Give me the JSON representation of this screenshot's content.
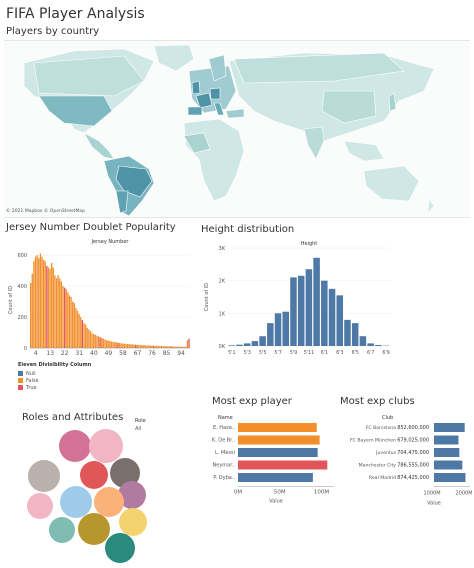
{
  "dashboard": {
    "title": "FIFA Player Analysis",
    "map_title": "Players by country",
    "map_credit": "© 2021 Mapbox © OpenStreetMap",
    "jersey_title": "Jersey Number Doublet Popularity",
    "height_title": "Height distribution",
    "roles_title": "Roles and Attributes",
    "player_title": "Most exp player",
    "clubs_title": "Most exp clubs"
  },
  "colors": {
    "null": "#4e79a7",
    "false": "#f28e2b",
    "true": "#e15759",
    "map_low": "#cfe7e5",
    "map_high": "#4f93a6",
    "bar_blue": "#4e79a7"
  },
  "chart_data": [
    {
      "id": "jersey",
      "type": "bar",
      "title": "Jersey Number",
      "xlabel": "",
      "ylabel": "Count of ID",
      "xlim": [
        1,
        99
      ],
      "ylim": [
        0,
        620
      ],
      "yticks": [
        0,
        200,
        400,
        600
      ],
      "xticks": [
        4,
        13,
        22,
        31,
        40,
        49,
        58,
        67,
        76,
        85,
        94
      ],
      "values": [
        420,
        480,
        560,
        590,
        600,
        580,
        610,
        590,
        570,
        560,
        530,
        520,
        510,
        550,
        520,
        470,
        450,
        470,
        450,
        430,
        400,
        390,
        380,
        360,
        340,
        330,
        300,
        290,
        260,
        240,
        220,
        200,
        180,
        160,
        150,
        130,
        120,
        110,
        95,
        90,
        85,
        80,
        75,
        70,
        65,
        60,
        55,
        50,
        48,
        45,
        42,
        40,
        38,
        36,
        34,
        32,
        30,
        29,
        28,
        27,
        26,
        25,
        24,
        23,
        22,
        21,
        20,
        20,
        19,
        18,
        18,
        17,
        17,
        16,
        16,
        15,
        15,
        14,
        14,
        14,
        13,
        13,
        12,
        12,
        12,
        11,
        11,
        10,
        10,
        10,
        9,
        9,
        9,
        8,
        8,
        8,
        8,
        50,
        60
      ],
      "categories_colors": "by divisibility",
      "legend": {
        "title": "Eleven Divisibility Column",
        "entries": [
          "Null",
          "False",
          "True"
        ]
      }
    },
    {
      "id": "height",
      "type": "bar",
      "title": "Height",
      "ylabel": "Count of ID",
      "categories": [
        "5'1",
        "5'2",
        "5'3",
        "5'4",
        "5'5",
        "5'6",
        "5'7",
        "5'8",
        "5'9",
        "5'10",
        "5'11",
        "6'0",
        "6'1",
        "6'2",
        "6'3",
        "6'4",
        "6'5",
        "6'6",
        "6'7",
        "6'8",
        "6'9"
      ],
      "xtick_labels": [
        "5'1",
        "5'3",
        "5'5",
        "5'7",
        "5'9",
        "5'11",
        "6'1",
        "6'3",
        "6'5",
        "6'7",
        "6'9"
      ],
      "values": [
        20,
        40,
        80,
        150,
        300,
        700,
        1000,
        1050,
        2100,
        2150,
        2350,
        2700,
        2000,
        1750,
        1550,
        800,
        700,
        300,
        80,
        30,
        10
      ],
      "ylim": [
        0,
        3000
      ],
      "ytick_labels": [
        "0K",
        "1K",
        "2K",
        "3K"
      ],
      "yticks": [
        0,
        1000,
        2000,
        3000
      ]
    },
    {
      "id": "players",
      "type": "bar",
      "orientation": "horizontal",
      "header": "Name",
      "xlabel": "Value",
      "categories": [
        "E. Haza..",
        "K. De Br..",
        "L. Messi",
        "Neymar..",
        "P. Dyba.."
      ],
      "values": [
        82000000,
        85000000,
        83000000,
        93000000,
        78000000
      ],
      "colors": [
        "#f28e2b",
        "#f28e2b",
        "#4e79a7",
        "#e15759",
        "#4e79a7"
      ],
      "xlim": [
        0,
        100000000
      ],
      "xtick_labels": [
        "0M",
        "50M",
        "100M"
      ]
    },
    {
      "id": "clubs",
      "type": "bar",
      "orientation": "horizontal",
      "header": "Club",
      "xlabel": "Value",
      "categories": [
        "FC Barcelona",
        "FC Bayern München",
        "Juventus",
        "Manchester City",
        "Real Madrid"
      ],
      "value_labels": [
        "852,600,000",
        "679,025,000",
        "704,475,000",
        "786,555,000",
        "874,425,000"
      ],
      "values": [
        852600000,
        679025000,
        704475000,
        786555000,
        874425000
      ],
      "xlim": [
        0,
        1000000000
      ],
      "xtick_labels": [
        "1000M",
        "2000M"
      ]
    },
    {
      "id": "roles",
      "type": "bubble",
      "legend_title": "Role",
      "legend_value": "All",
      "bubbles": [
        {
          "r": 16,
          "color": "#d37295"
        },
        {
          "r": 17,
          "color": "#f1b5c4"
        },
        {
          "r": 14,
          "color": "#e15759"
        },
        {
          "r": 15,
          "color": "#79706e"
        },
        {
          "r": 14,
          "color": "#b07aa1"
        },
        {
          "r": 16,
          "color": "#bab0ac"
        },
        {
          "r": 16,
          "color": "#9dcbe8"
        },
        {
          "r": 15,
          "color": "#fbb27a"
        },
        {
          "r": 8,
          "color": "#b07aa1"
        },
        {
          "r": 13,
          "color": "#7fbdb3"
        },
        {
          "r": 16,
          "color": "#b8962e"
        },
        {
          "r": 14,
          "color": "#f4d36e"
        },
        {
          "r": 13,
          "color": "#f1b5c4"
        },
        {
          "r": 15,
          "color": "#2a8a7c"
        }
      ]
    }
  ]
}
